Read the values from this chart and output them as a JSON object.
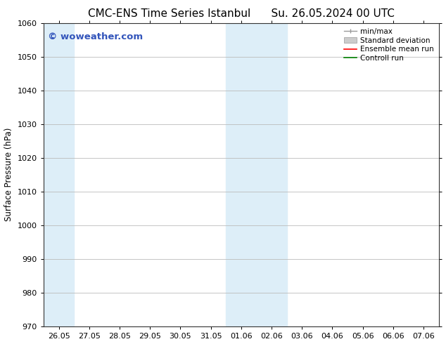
{
  "title_left": "CMC-ENS Time Series Istanbul",
  "title_right": "Su. 26.05.2024 00 UTC",
  "ylabel": "Surface Pressure (hPa)",
  "ylim": [
    970,
    1060
  ],
  "yticks": [
    970,
    980,
    990,
    1000,
    1010,
    1020,
    1030,
    1040,
    1050,
    1060
  ],
  "xlabels": [
    "26.05",
    "27.05",
    "28.05",
    "29.05",
    "30.05",
    "31.05",
    "01.06",
    "02.06",
    "03.06",
    "04.06",
    "05.06",
    "06.06",
    "07.06"
  ],
  "band_color": "#ddeef8",
  "watermark_text": "© woweather.com",
  "watermark_color": "#3355bb",
  "background_color": "#ffffff",
  "grid_color": "#bbbbbb",
  "spine_color": "#333333",
  "title_fontsize": 11,
  "label_fontsize": 8.5,
  "tick_fontsize": 8,
  "legend_fontsize": 7.5
}
